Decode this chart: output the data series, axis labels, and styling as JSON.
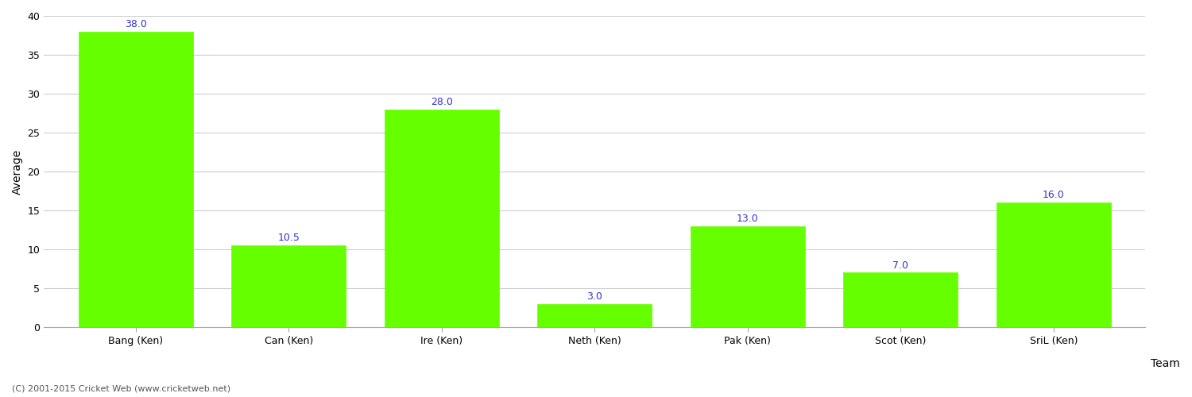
{
  "categories": [
    "Bang (Ken)",
    "Can (Ken)",
    "Ire (Ken)",
    "Neth (Ken)",
    "Pak (Ken)",
    "Scot (Ken)",
    "SriL (Ken)"
  ],
  "values": [
    38.0,
    10.5,
    28.0,
    3.0,
    13.0,
    7.0,
    16.0
  ],
  "bar_color": "#66ff00",
  "bar_edge_color": "#66ff00",
  "xlabel": "Team",
  "ylabel": "Average",
  "ylim": [
    0,
    40
  ],
  "yticks": [
    0,
    5,
    10,
    15,
    20,
    25,
    30,
    35,
    40
  ],
  "label_color": "#3333cc",
  "label_fontsize": 9,
  "axis_fontsize": 10,
  "tick_fontsize": 9,
  "background_color": "#ffffff",
  "grid_color": "#cccccc",
  "footer_text": "(C) 2001-2015 Cricket Web (www.cricketweb.net)",
  "footer_fontsize": 8,
  "footer_color": "#555555"
}
